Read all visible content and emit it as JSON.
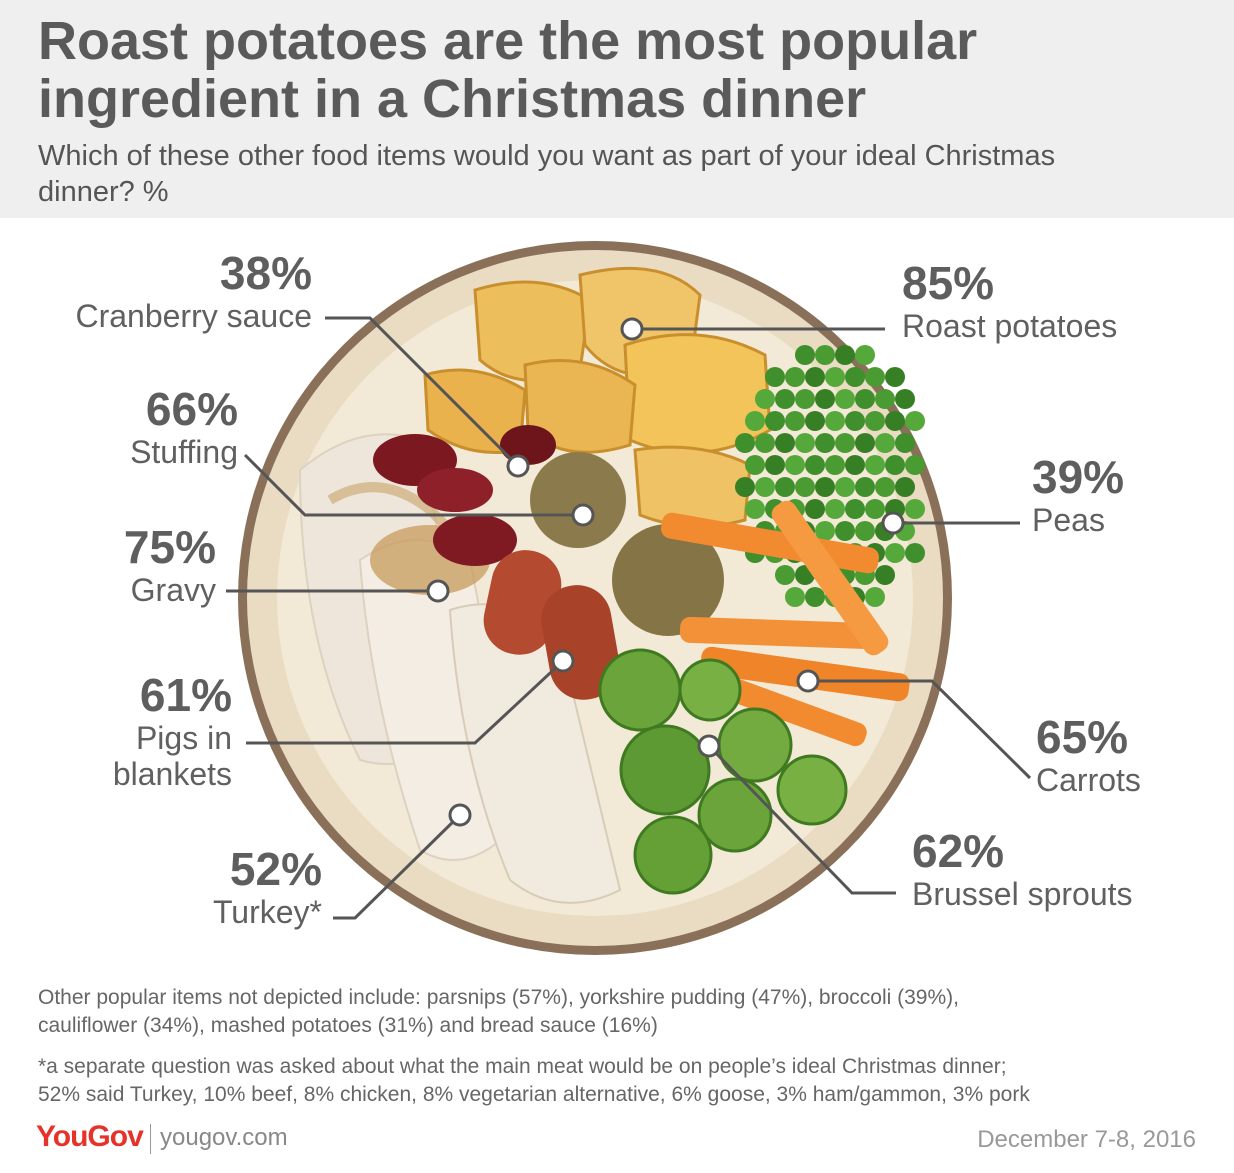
{
  "title": "Roast potatoes are the most popular ingredient in a Christmas dinner",
  "subtitle": "Which of these other food items would you want as part of your ideal Christmas dinner? %",
  "chart_data": {
    "type": "bar",
    "categories": [
      "Roast potatoes",
      "Gravy",
      "Stuffing",
      "Carrots",
      "Brussel sprouts",
      "Pigs in blankets",
      "Turkey*",
      "Peas",
      "Cranberry sauce"
    ],
    "values": [
      85,
      75,
      66,
      65,
      62,
      61,
      52,
      39,
      38
    ],
    "unit": "%"
  },
  "labels": {
    "cranberry": {
      "pct": "38%",
      "name": "Cranberry sauce"
    },
    "stuffing": {
      "pct": "66%",
      "name": "Stuffing"
    },
    "gravy": {
      "pct": "75%",
      "name": "Gravy"
    },
    "pigs": {
      "pct": "61%",
      "name1": "Pigs in",
      "name2": "blankets"
    },
    "turkey": {
      "pct": "52%",
      "name": "Turkey*"
    },
    "potatoes": {
      "pct": "85%",
      "name": "Roast potatoes"
    },
    "peas": {
      "pct": "39%",
      "name": "Peas"
    },
    "carrots": {
      "pct": "65%",
      "name": "Carrots"
    },
    "sprouts": {
      "pct": "62%",
      "name": "Brussel sprouts"
    }
  },
  "footnotes": {
    "other_line1": "Other popular items not depicted include: parsnips (57%), yorkshire pudding (47%), broccoli (39%),",
    "other_line2": "cauliflower (34%), mashed potatoes (31%) and bread sauce (16%)",
    "meat_line1": "*a separate question was asked about what the main meat would be on people’s ideal Christmas dinner;",
    "meat_line2": "52% said Turkey, 10% beef, 8% chicken, 8% vegetarian alternative, 6% goose, 3% ham/gammon, 3% pork"
  },
  "brand": "YouGov",
  "site": "yougov.com",
  "date": "December 7-8, 2016",
  "colors": {
    "header_bg": "#efefef",
    "text": "#5a5a5a",
    "brand_red": "#e6332a",
    "plate_rim": "#8a7058",
    "plate": "#efe4cf",
    "potato": "#e9b553",
    "pea": "#3f8f2c",
    "carrot": "#f08a32",
    "sprout": "#6aa33a",
    "turkey": "#efe8dc",
    "cranberry": "#7a1a22",
    "stuffing": "#8a7a4a",
    "sausage": "#b24a2e"
  }
}
